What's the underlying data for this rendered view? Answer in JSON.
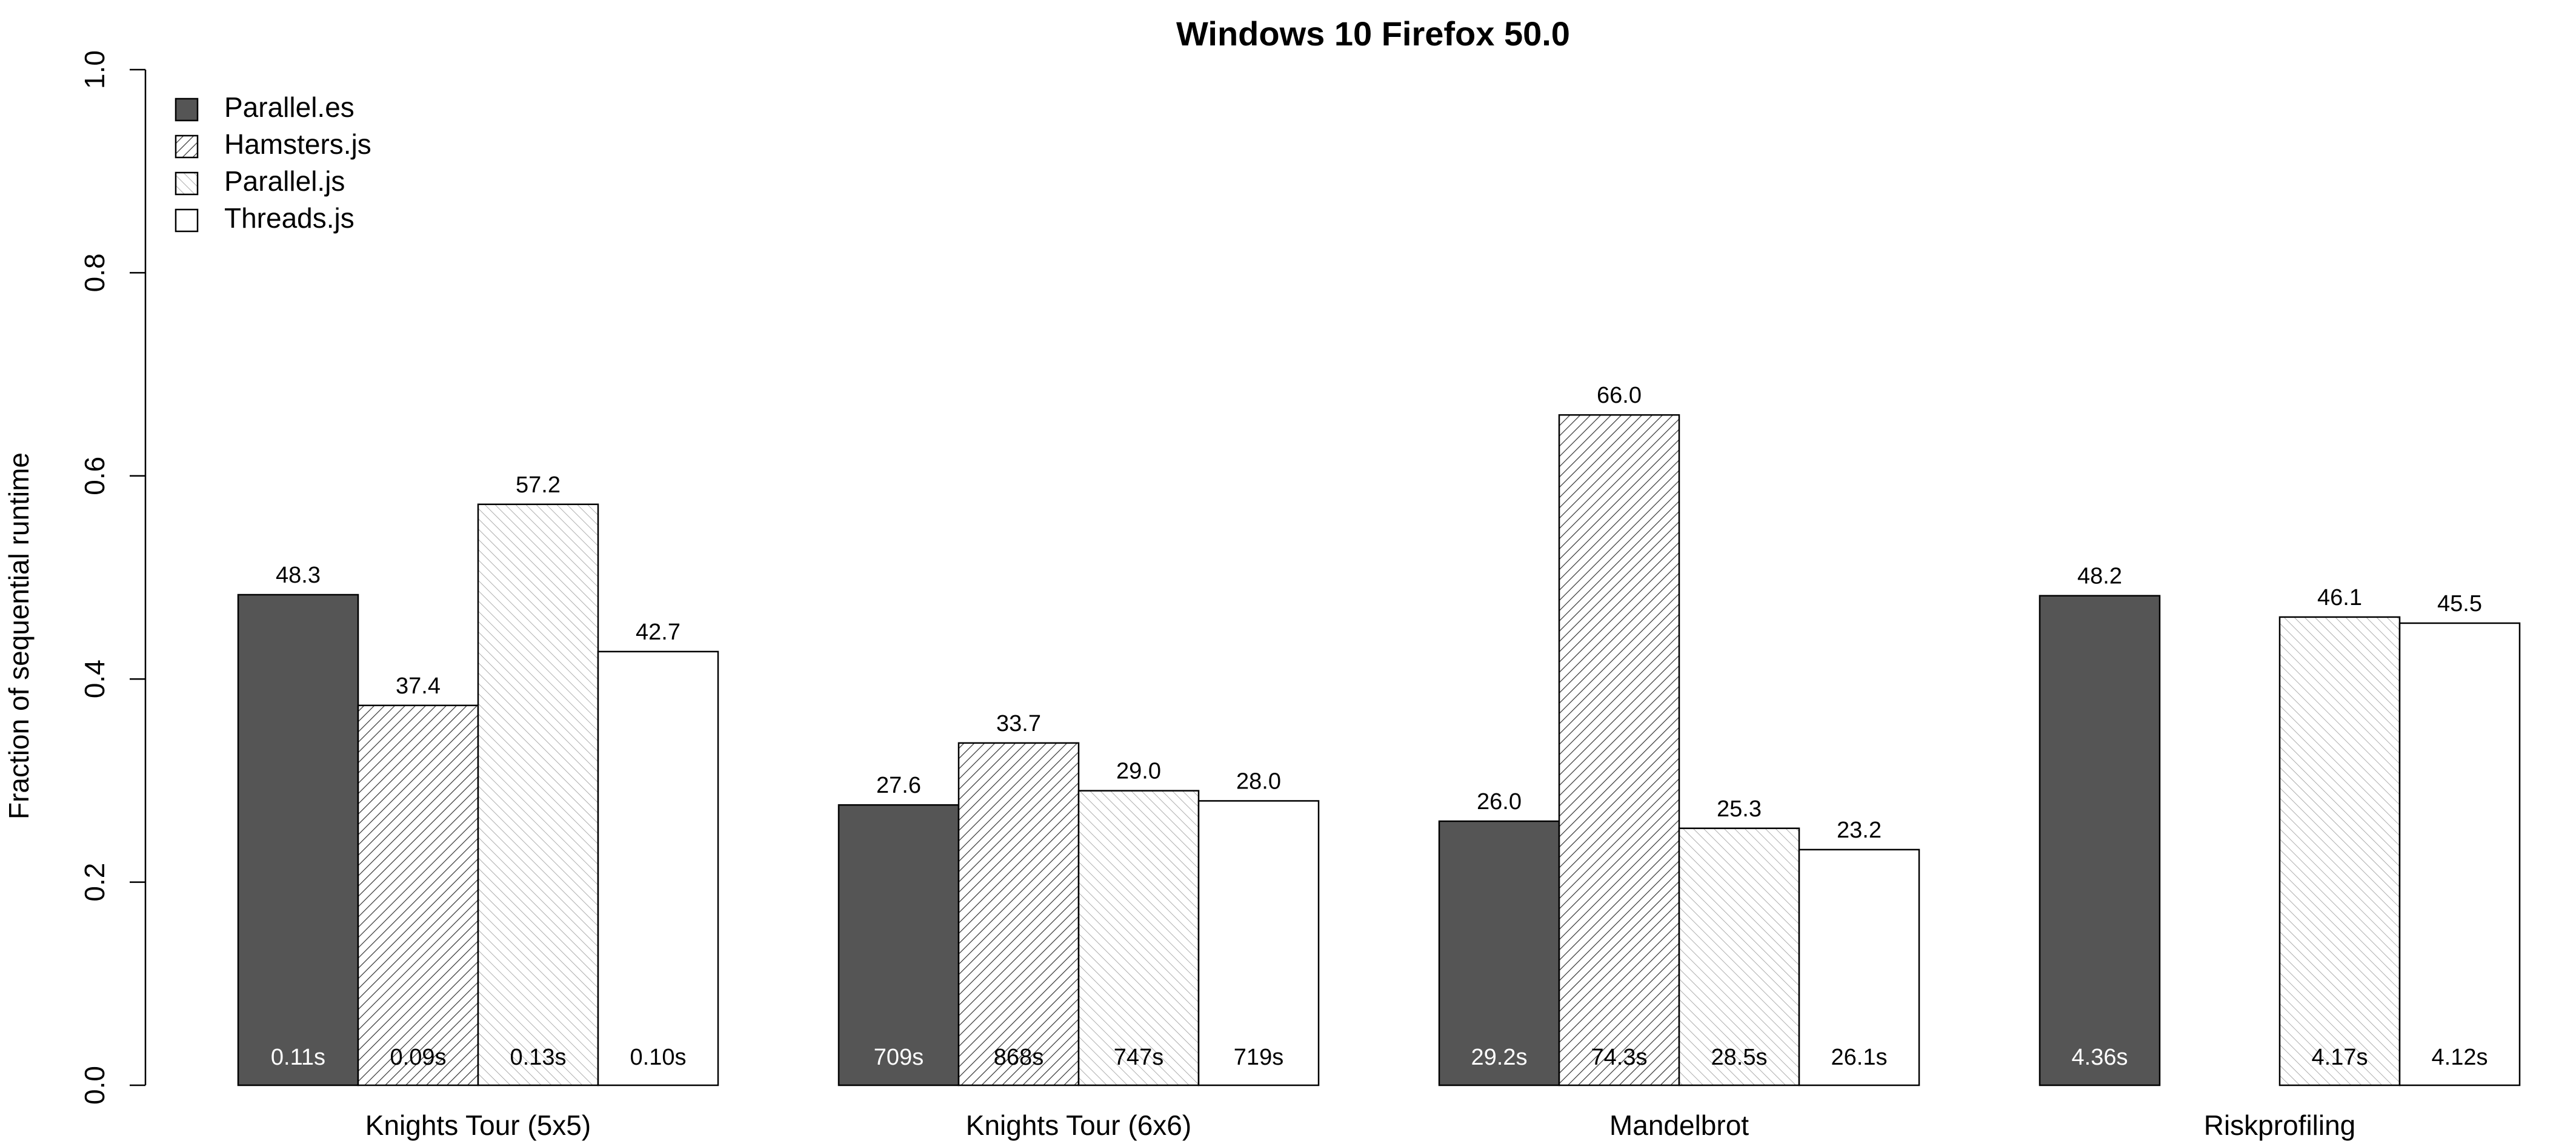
{
  "chart_data": {
    "type": "bar",
    "title": "Windows 10 Firefox 50.0",
    "xlabel": "",
    "ylabel": "Fraction of sequential runtime",
    "ylim": [
      0,
      1
    ],
    "yticks": [
      "0.0",
      "0.2",
      "0.4",
      "0.6",
      "0.8",
      "1.0"
    ],
    "grid": false,
    "legend_position": "top-left",
    "categories": [
      "Knights Tour (5x5)",
      "Knights Tour (6x6)",
      "Mandelbrot",
      "Riskprofiling"
    ],
    "series": [
      {
        "name": "Parallel.es",
        "fill": "#555555",
        "pattern": "solid",
        "values": [
          0.483,
          0.276,
          0.26,
          0.482
        ],
        "top_labels": [
          "48.3",
          "27.6",
          "26.0",
          "48.2"
        ],
        "bottom_labels": [
          "0.11s",
          "709s",
          "29.2s",
          "4.36s"
        ],
        "bottom_label_color": "#ffffff"
      },
      {
        "name": "Hamsters.js",
        "fill": "#ffffff",
        "pattern": "dense-hatch",
        "values": [
          0.374,
          0.337,
          0.66,
          null
        ],
        "top_labels": [
          "37.4",
          "33.7",
          "66.0",
          ""
        ],
        "bottom_labels": [
          "0.09s",
          "868s",
          "74.3s",
          ""
        ],
        "bottom_label_color": "#000000"
      },
      {
        "name": "Parallel.js",
        "fill": "#ffffff",
        "pattern": "light-hatch",
        "values": [
          0.572,
          0.29,
          0.253,
          0.461
        ],
        "top_labels": [
          "57.2",
          "29.0",
          "25.3",
          "46.1"
        ],
        "bottom_labels": [
          "0.13s",
          "747s",
          "28.5s",
          "4.17s"
        ],
        "bottom_label_color": "#000000"
      },
      {
        "name": "Threads.js",
        "fill": "#ffffff",
        "pattern": "none",
        "values": [
          0.427,
          0.28,
          0.232,
          0.455
        ],
        "top_labels": [
          "42.7",
          "28.0",
          "23.2",
          "45.5"
        ],
        "bottom_labels": [
          "0.10s",
          "719s",
          "26.1s",
          "4.12s"
        ],
        "bottom_label_color": "#000000"
      }
    ]
  }
}
